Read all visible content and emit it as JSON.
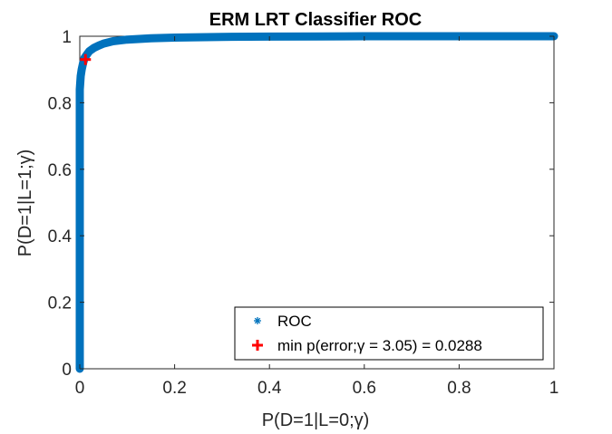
{
  "chart_data": {
    "type": "line",
    "title": "ERM LRT Classifier ROC",
    "xlabel": "P(D=1|L=0;γ)",
    "ylabel": "P(D=1|L=1;γ)",
    "xlim": [
      0,
      1
    ],
    "ylim": [
      0,
      1
    ],
    "xticks": [
      "0",
      "0.2",
      "0.4",
      "0.6",
      "0.8",
      "1"
    ],
    "yticks": [
      "0",
      "0.2",
      "0.4",
      "0.6",
      "0.8",
      "1"
    ],
    "grid": false,
    "legend_position": "bottom-right",
    "series": [
      {
        "name": "ROC",
        "marker": "asterisk",
        "color": "#0072BD",
        "x": [
          0,
          0,
          0,
          0,
          0,
          0,
          0,
          0.001,
          0.002,
          0.004,
          0.007,
          0.01,
          0.015,
          0.02,
          0.03,
          0.04,
          0.05,
          0.07,
          0.1,
          0.15,
          0.2,
          0.3,
          0.4,
          0.5,
          0.6,
          0.7,
          0.8,
          0.9,
          1.0
        ],
        "y": [
          0,
          0.2,
          0.4,
          0.6,
          0.7,
          0.8,
          0.84,
          0.86,
          0.88,
          0.9,
          0.92,
          0.935,
          0.945,
          0.955,
          0.965,
          0.972,
          0.978,
          0.985,
          0.99,
          0.994,
          0.996,
          0.998,
          0.999,
          0.9995,
          1.0,
          1.0,
          1.0,
          1.0,
          1.0
        ]
      },
      {
        "name": "min p(error;γ = 3.05) = 0.0288",
        "marker": "plus",
        "color": "#FF0000",
        "x": [
          0.012
        ],
        "y": [
          0.93
        ]
      }
    ],
    "legend": {
      "roc_label": "ROC",
      "min_label": "min p(error;γ = 3.05) = 0.0288"
    }
  }
}
